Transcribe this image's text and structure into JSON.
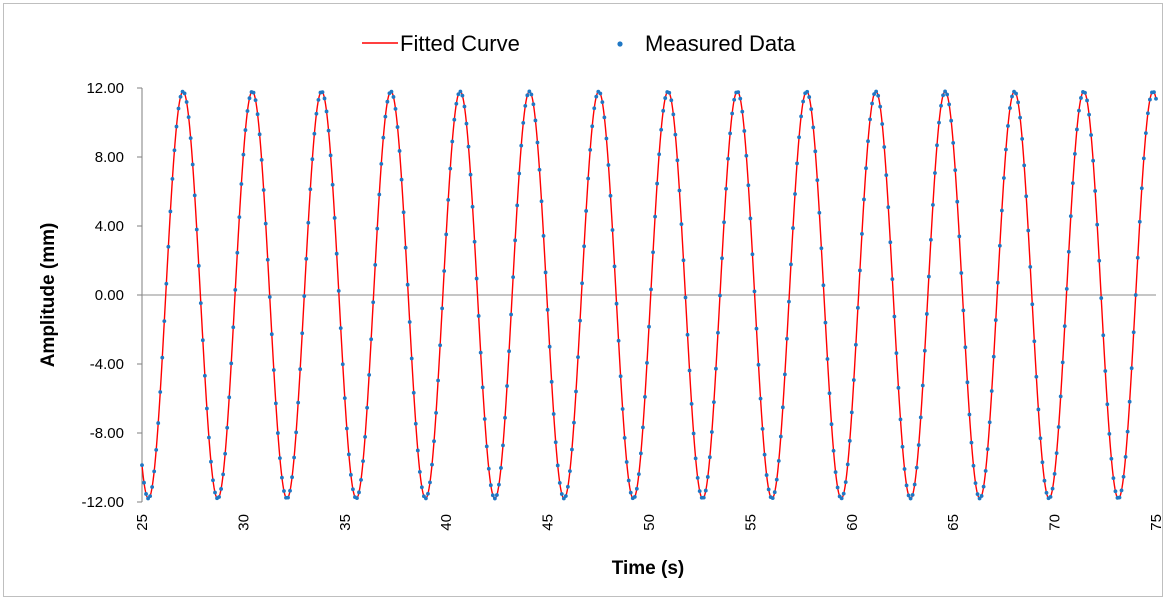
{
  "chart_data": {
    "type": "line",
    "title": "",
    "xlabel": "Time (s)",
    "ylabel": "Amplitude (mm)",
    "xlim": [
      25,
      75
    ],
    "ylim": [
      -12,
      12
    ],
    "x_ticks": [
      "25",
      "30",
      "35",
      "40",
      "45",
      "50",
      "55",
      "60",
      "65",
      "70",
      "75"
    ],
    "y_ticks": [
      "12.00",
      "8.00",
      "4.00",
      "0.00",
      "-4.00",
      "-8.00",
      "-12.00"
    ],
    "grid": false,
    "legend_position": "top-center",
    "series": [
      {
        "name": "Fitted Curve",
        "kind": "line",
        "color": "#ff0000",
        "x_range": [
          25,
          75
        ],
        "amplitude": 11.8,
        "zero_crossings_rising": [
          26.17,
          29.6,
          33.0,
          36.5,
          39.9,
          43.3,
          46.7,
          50.1,
          53.5,
          56.9,
          60.4,
          63.8,
          67.2,
          70.6,
          74.0
        ]
      },
      {
        "name": "Measured Data",
        "kind": "scatter",
        "color": "#1f77c4",
        "x_range": [
          25,
          75
        ],
        "amplitude": 11.8,
        "zero_crossings_rising": [
          26.17,
          29.6,
          33.0,
          36.5,
          39.9,
          43.3,
          46.7,
          50.1,
          53.5,
          56.9,
          60.4,
          63.8,
          67.2,
          70.6,
          74.0
        ]
      }
    ]
  }
}
